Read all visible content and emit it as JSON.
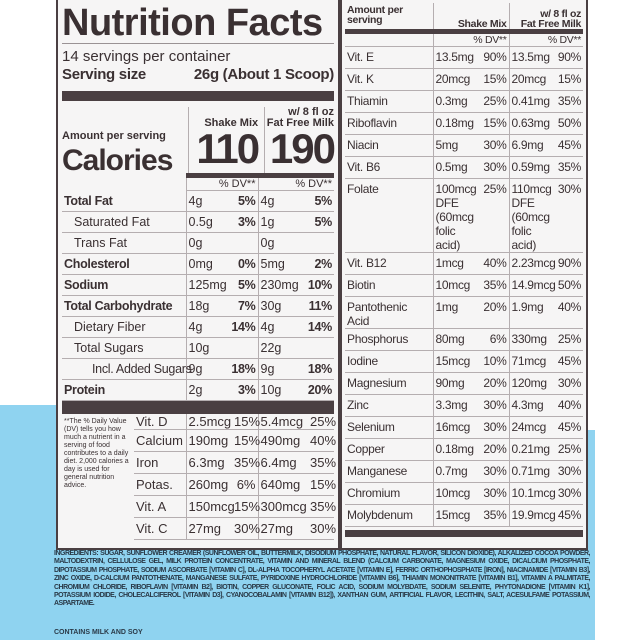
{
  "title": "Nutrition Facts",
  "servings": "14 servings per container",
  "serving_size_label": "Serving size",
  "serving_size_value": "26g (About 1 Scoop)",
  "amount_per_serving": "Amount per serving",
  "calories_label": "Calories",
  "col1": "Shake Mix",
  "col2_line1": "w/ 8 fl oz",
  "col2_line2": "Fat Free Milk",
  "cal1": "110",
  "cal2": "190",
  "dv": "% DV**",
  "macros": [
    {
      "name": "Total Fat",
      "style": "b",
      "a1": "4g",
      "d1": "5%",
      "a2": "4g",
      "d2": "5%"
    },
    {
      "name": "Saturated Fat",
      "style": "ind1",
      "a1": "0.5g",
      "d1": "3%",
      "a2": "1g",
      "d2": "5%"
    },
    {
      "name": "Trans Fat",
      "style": "ind1",
      "a1": "0g",
      "d1": "",
      "a2": "0g",
      "d2": ""
    },
    {
      "name": "Cholesterol",
      "style": "b",
      "a1": "0mg",
      "d1": "0%",
      "a2": "5mg",
      "d2": "2%"
    },
    {
      "name": "Sodium",
      "style": "b",
      "a1": "125mg",
      "d1": "5%",
      "a2": "230mg",
      "d2": "10%"
    },
    {
      "name": "Total Carbohydrate",
      "style": "b",
      "a1": "18g",
      "d1": "7%",
      "a2": "30g",
      "d2": "11%"
    },
    {
      "name": "Dietary Fiber",
      "style": "ind1",
      "a1": "4g",
      "d1": "14%",
      "a2": "4g",
      "d2": "14%"
    },
    {
      "name": "Total Sugars",
      "style": "ind1",
      "a1": "10g",
      "d1": "",
      "a2": "22g",
      "d2": ""
    },
    {
      "name": "Incl. Added Sugars",
      "style": "ind2",
      "a1": "9g",
      "d1": "18%",
      "a2": "9g",
      "d2": "18%"
    },
    {
      "name": "Protein",
      "style": "b",
      "a1": "2g",
      "d1": "3%",
      "a2": "10g",
      "d2": "20%"
    }
  ],
  "footnote": "**The % Daily Value (DV) tells you how much a nutrient in a serving of food contributes to a daily diet. 2,000 calories a day is used for general nutrition advice.",
  "vitamins_left": [
    {
      "name": "Vit. D",
      "a1": "2.5mcg",
      "d1": "15%",
      "a2": "5.4mcg",
      "d2": "25%"
    },
    {
      "name": "Calcium",
      "a1": "190mg",
      "d1": "15%",
      "a2": "490mg",
      "d2": "40%"
    },
    {
      "name": "Iron",
      "a1": "6.3mg",
      "d1": "35%",
      "a2": "6.4mg",
      "d2": "35%"
    },
    {
      "name": "Potas.",
      "a1": "260mg",
      "d1": "6%",
      "a2": "640mg",
      "d2": "15%"
    },
    {
      "name": "Vit. A",
      "a1": "150mcg",
      "d1": "15%",
      "a2": "300mcg",
      "d2": "35%"
    },
    {
      "name": "Vit. C",
      "a1": "27mg",
      "d1": "30%",
      "a2": "27mg",
      "d2": "30%"
    }
  ],
  "right": {
    "amount_line1": "Amount per",
    "amount_line2": "serving",
    "col1": "Shake Mix",
    "col2_line1": "w/ 8 fl oz",
    "col2_line2": "Fat Free Milk",
    "rows": [
      {
        "name": "Vit. E",
        "a1": "13.5mg",
        "d1": "90%",
        "a2": "13.5mg",
        "d2": "90%"
      },
      {
        "name": "Vit. K",
        "a1": "20mcg",
        "d1": "15%",
        "a2": "20mcg",
        "d2": "15%"
      },
      {
        "name": "Thiamin",
        "a1": "0.3mg",
        "d1": "25%",
        "a2": "0.41mg",
        "d2": "35%"
      },
      {
        "name": "Riboflavin",
        "a1": "0.18mg",
        "d1": "15%",
        "a2": "0.63mg",
        "d2": "50%"
      },
      {
        "name": "Niacin",
        "a1": "5mg",
        "d1": "30%",
        "a2": "6.9mg",
        "d2": "45%"
      },
      {
        "name": "Vit. B6",
        "a1": "0.5mg",
        "d1": "30%",
        "a2": "0.59mg",
        "d2": "35%"
      },
      {
        "name": "Folate",
        "a1": "100mcg DFE (60mcg folic acid)",
        "d1": "25%",
        "a2": "110mcg DFE (60mcg folic acid)",
        "d2": "30%"
      },
      {
        "name": "Vit. B12",
        "a1": "1mcg",
        "d1": "40%",
        "a2": "2.23mcg",
        "d2": "90%"
      },
      {
        "name": "Biotin",
        "a1": "10mcg",
        "d1": "35%",
        "a2": "14.9mcg",
        "d2": "50%"
      },
      {
        "name": "Pantothenic Acid",
        "a1": "1mg",
        "d1": "20%",
        "a2": "1.9mg",
        "d2": "40%"
      },
      {
        "name": "Phosphorus",
        "a1": "80mg",
        "d1": "6%",
        "a2": "330mg",
        "d2": "25%"
      },
      {
        "name": "Iodine",
        "a1": "15mcg",
        "d1": "10%",
        "a2": "71mcg",
        "d2": "45%"
      },
      {
        "name": "Magnesium",
        "a1": "90mg",
        "d1": "20%",
        "a2": "120mg",
        "d2": "30%"
      },
      {
        "name": "Zinc",
        "a1": "3.3mg",
        "d1": "30%",
        "a2": "4.3mg",
        "d2": "40%"
      },
      {
        "name": "Selenium",
        "a1": "16mcg",
        "d1": "30%",
        "a2": "24mcg",
        "d2": "45%"
      },
      {
        "name": "Copper",
        "a1": "0.18mg",
        "d1": "20%",
        "a2": "0.21mg",
        "d2": "25%"
      },
      {
        "name": "Manganese",
        "a1": "0.7mg",
        "d1": "30%",
        "a2": "0.71mg",
        "d2": "30%"
      },
      {
        "name": "Chromium",
        "a1": "10mcg",
        "d1": "30%",
        "a2": "10.1mcg",
        "d2": "30%"
      },
      {
        "name": "Molybdenum",
        "a1": "15mcg",
        "d1": "35%",
        "a2": "19.9mcg",
        "d2": "45%"
      }
    ]
  },
  "ingredients": "INGREDIENTS: SUGAR, SUNFLOWER CREAMER (SUNFLOWER OIL, BUTTERMILK, DISODIUM PHOSPHATE, NATURAL FLAVOR, SILICON DIOXIDE), ALKALIZED COCOA POWDER, MALTODEXTRIN, CELLULOSE GEL, MILK PROTEIN CONCENTRATE, VITAMIN AND MINERAL BLEND (CALCIUM CARBONATE, MAGNESIUM OXIDE, DICALCIUM PHOSPHATE, DIPOTASSIUM PHOSPHATE, SODIUM ASCORBATE [VITAMIN C], DL-ALPHA TOCOPHERYL ACETATE [VITAMIN E], FERRIC ORTHOPHOSPHATE [IRON], NIACINAMIDE [VITAMIN B3], ZINC OXIDE, D-CALCIUM PANTOTHENATE, MANGANESE SULFATE, PYRIDOXINE HYDROCHLORIDE [VITAMIN B6], THIAMIN MONONITRATE [VITAMIN B1], VITAMIN A PALMITATE, CHROMIUM CHLORIDE, RIBOFLAVIN [VITAMIN B2], BIOTIN, COPPER GLUCONATE, FOLIC ACID, SODIUM MOLYBDATE, SODIUM SELENITE, PHYTONADIONE [VITAMIN K1], POTASSIUM IODIDE, CHOLECALCIFEROL [VITAMIN D3], CYANOCOBALAMIN [VITAMIN B12]), XANTHAN GUM, ARTIFICIAL FLAVOR, LECITHIN, SALT, ACESULFAME POTASSIUM, ASPARTAME.",
  "contains": "CONTAINS MILK AND SOY",
  "colors": {
    "ink": "#3a3032",
    "panel": "#f6f5f5",
    "background_blue": "#8fd3f0"
  }
}
